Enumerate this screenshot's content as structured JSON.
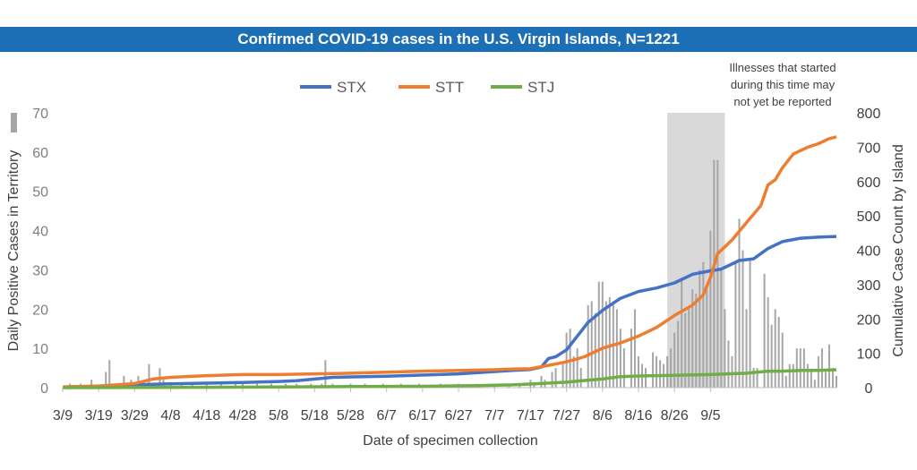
{
  "chart_data": {
    "type": "bar+line",
    "title": "Confirmed COVID-19 cases in the U.S. Virgin Islands, N=1221",
    "xlabel": "Date of specimen collection",
    "ylabel_left": "Daily Positive Cases in Territory",
    "ylabel_right": "Cumulative Case Count by Island",
    "ylim_left": [
      0,
      70
    ],
    "yticks_left": [
      0,
      10,
      20,
      30,
      40,
      50,
      60,
      70
    ],
    "ylim_right": [
      0,
      800
    ],
    "yticks_right": [
      0,
      100,
      200,
      300,
      400,
      500,
      600,
      700,
      800
    ],
    "x_tick_labels": [
      "3/9",
      "3/19",
      "3/29",
      "4/8",
      "4/18",
      "4/28",
      "5/8",
      "5/18",
      "5/28",
      "6/7",
      "6/17",
      "6/27",
      "7/7",
      "7/17",
      "7/27",
      "8/6",
      "8/16",
      "8/26",
      "9/5"
    ],
    "legend_position": "top-center",
    "annotation": [
      "Illnesses that started",
      "during this time may",
      "not yet be reported"
    ],
    "shaded_region": {
      "start_day": 168,
      "end_day": 184
    },
    "colors": {
      "STX": "#4472c4",
      "STT": "#ed7d31",
      "STJ": "#70ad47",
      "bars": "#a6a6a6",
      "shade": "#d9d9d9",
      "title_bg": "#1c6fb4"
    },
    "daily_bars": [
      [
        2,
        1
      ],
      [
        5,
        1
      ],
      [
        8,
        2
      ],
      [
        12,
        4
      ],
      [
        13,
        7
      ],
      [
        15,
        1
      ],
      [
        17,
        3
      ],
      [
        19,
        2
      ],
      [
        21,
        3
      ],
      [
        22,
        1
      ],
      [
        24,
        6
      ],
      [
        25,
        1
      ],
      [
        27,
        5
      ],
      [
        28,
        2
      ],
      [
        30,
        1
      ],
      [
        33,
        1
      ],
      [
        36,
        1
      ],
      [
        40,
        1
      ],
      [
        44,
        1
      ],
      [
        48,
        1
      ],
      [
        50,
        1
      ],
      [
        54,
        1
      ],
      [
        58,
        1
      ],
      [
        62,
        1
      ],
      [
        65,
        1
      ],
      [
        69,
        1
      ],
      [
        72,
        1
      ],
      [
        73,
        7
      ],
      [
        75,
        1
      ],
      [
        80,
        1
      ],
      [
        84,
        1
      ],
      [
        89,
        1
      ],
      [
        94,
        1
      ],
      [
        99,
        1
      ],
      [
        105,
        1
      ],
      [
        110,
        1
      ],
      [
        115,
        1
      ],
      [
        120,
        1
      ],
      [
        124,
        1
      ],
      [
        127,
        1
      ],
      [
        130,
        2
      ],
      [
        131,
        1
      ],
      [
        133,
        3
      ],
      [
        134,
        2
      ],
      [
        136,
        4
      ],
      [
        137,
        5
      ],
      [
        139,
        6
      ],
      [
        140,
        14
      ],
      [
        141,
        15
      ],
      [
        142,
        8
      ],
      [
        143,
        10
      ],
      [
        144,
        5
      ],
      [
        146,
        21
      ],
      [
        147,
        22
      ],
      [
        148,
        19
      ],
      [
        149,
        27
      ],
      [
        150,
        27
      ],
      [
        151,
        22
      ],
      [
        152,
        23
      ],
      [
        153,
        22
      ],
      [
        154,
        20
      ],
      [
        155,
        15
      ],
      [
        156,
        10
      ],
      [
        158,
        15
      ],
      [
        159,
        20
      ],
      [
        160,
        8
      ],
      [
        161,
        6
      ],
      [
        162,
        5
      ],
      [
        164,
        9
      ],
      [
        165,
        8
      ],
      [
        166,
        7
      ],
      [
        167,
        6
      ],
      [
        168,
        8
      ],
      [
        169,
        10
      ],
      [
        170,
        14
      ],
      [
        171,
        17
      ],
      [
        172,
        28
      ],
      [
        173,
        19
      ],
      [
        174,
        20
      ],
      [
        175,
        25
      ],
      [
        176,
        24
      ],
      [
        177,
        30
      ],
      [
        178,
        32
      ],
      [
        179,
        25
      ],
      [
        180,
        40
      ],
      [
        181,
        58
      ],
      [
        182,
        58
      ],
      [
        183,
        30
      ],
      [
        184,
        20
      ],
      [
        185,
        12
      ],
      [
        186,
        8
      ],
      [
        187,
        32
      ],
      [
        188,
        43
      ],
      [
        189,
        35
      ],
      [
        190,
        20
      ],
      [
        191,
        33
      ],
      [
        192,
        5
      ],
      [
        193,
        5
      ],
      [
        195,
        29
      ],
      [
        196,
        23
      ],
      [
        197,
        16
      ],
      [
        198,
        20
      ],
      [
        199,
        18
      ],
      [
        200,
        14
      ],
      [
        201,
        3
      ],
      [
        202,
        6
      ],
      [
        203,
        6
      ],
      [
        204,
        10
      ],
      [
        205,
        10
      ],
      [
        206,
        10
      ],
      [
        207,
        6
      ],
      [
        208,
        4
      ],
      [
        209,
        2
      ],
      [
        210,
        8
      ],
      [
        211,
        10
      ],
      [
        212,
        4
      ],
      [
        213,
        11
      ],
      [
        214,
        5
      ],
      [
        215,
        3
      ]
    ],
    "series": [
      {
        "name": "STX",
        "points": [
          [
            0,
            2
          ],
          [
            10,
            4
          ],
          [
            20,
            8
          ],
          [
            25,
            10
          ],
          [
            30,
            11
          ],
          [
            40,
            13
          ],
          [
            50,
            15
          ],
          [
            60,
            18
          ],
          [
            65,
            20
          ],
          [
            70,
            25
          ],
          [
            75,
            30
          ],
          [
            90,
            33
          ],
          [
            110,
            40
          ],
          [
            125,
            50
          ],
          [
            130,
            53
          ],
          [
            133,
            60
          ],
          [
            135,
            85
          ],
          [
            137,
            90
          ],
          [
            140,
            110
          ],
          [
            143,
            150
          ],
          [
            146,
            190
          ],
          [
            150,
            225
          ],
          [
            155,
            260
          ],
          [
            160,
            280
          ],
          [
            165,
            290
          ],
          [
            170,
            305
          ],
          [
            175,
            330
          ],
          [
            180,
            340
          ],
          [
            183,
            345
          ],
          [
            188,
            370
          ],
          [
            192,
            375
          ],
          [
            196,
            405
          ],
          [
            200,
            425
          ],
          [
            205,
            435
          ],
          [
            210,
            438
          ],
          [
            215,
            440
          ]
        ]
      },
      {
        "name": "STT",
        "points": [
          [
            0,
            2
          ],
          [
            10,
            5
          ],
          [
            15,
            8
          ],
          [
            20,
            12
          ],
          [
            25,
            25
          ],
          [
            30,
            30
          ],
          [
            40,
            35
          ],
          [
            50,
            38
          ],
          [
            60,
            38
          ],
          [
            70,
            40
          ],
          [
            80,
            42
          ],
          [
            90,
            45
          ],
          [
            100,
            48
          ],
          [
            110,
            50
          ],
          [
            120,
            52
          ],
          [
            125,
            54
          ],
          [
            130,
            55
          ],
          [
            135,
            65
          ],
          [
            140,
            75
          ],
          [
            145,
            90
          ],
          [
            150,
            115
          ],
          [
            155,
            130
          ],
          [
            160,
            150
          ],
          [
            165,
            175
          ],
          [
            170,
            210
          ],
          [
            175,
            240
          ],
          [
            178,
            270
          ],
          [
            180,
            320
          ],
          [
            182,
            390
          ],
          [
            186,
            430
          ],
          [
            190,
            480
          ],
          [
            194,
            530
          ],
          [
            196,
            590
          ],
          [
            198,
            605
          ],
          [
            200,
            640
          ],
          [
            203,
            680
          ],
          [
            207,
            700
          ],
          [
            210,
            710
          ],
          [
            213,
            725
          ],
          [
            215,
            730
          ]
        ]
      },
      {
        "name": "STJ",
        "points": [
          [
            0,
            0
          ],
          [
            40,
            1
          ],
          [
            80,
            3
          ],
          [
            100,
            4
          ],
          [
            115,
            6
          ],
          [
            125,
            8
          ],
          [
            133,
            12
          ],
          [
            140,
            16
          ],
          [
            146,
            22
          ],
          [
            150,
            25
          ],
          [
            155,
            32
          ],
          [
            160,
            34
          ],
          [
            170,
            36
          ],
          [
            180,
            38
          ],
          [
            190,
            42
          ],
          [
            196,
            48
          ],
          [
            200,
            48
          ],
          [
            205,
            50
          ],
          [
            210,
            50
          ],
          [
            215,
            52
          ]
        ]
      }
    ]
  }
}
